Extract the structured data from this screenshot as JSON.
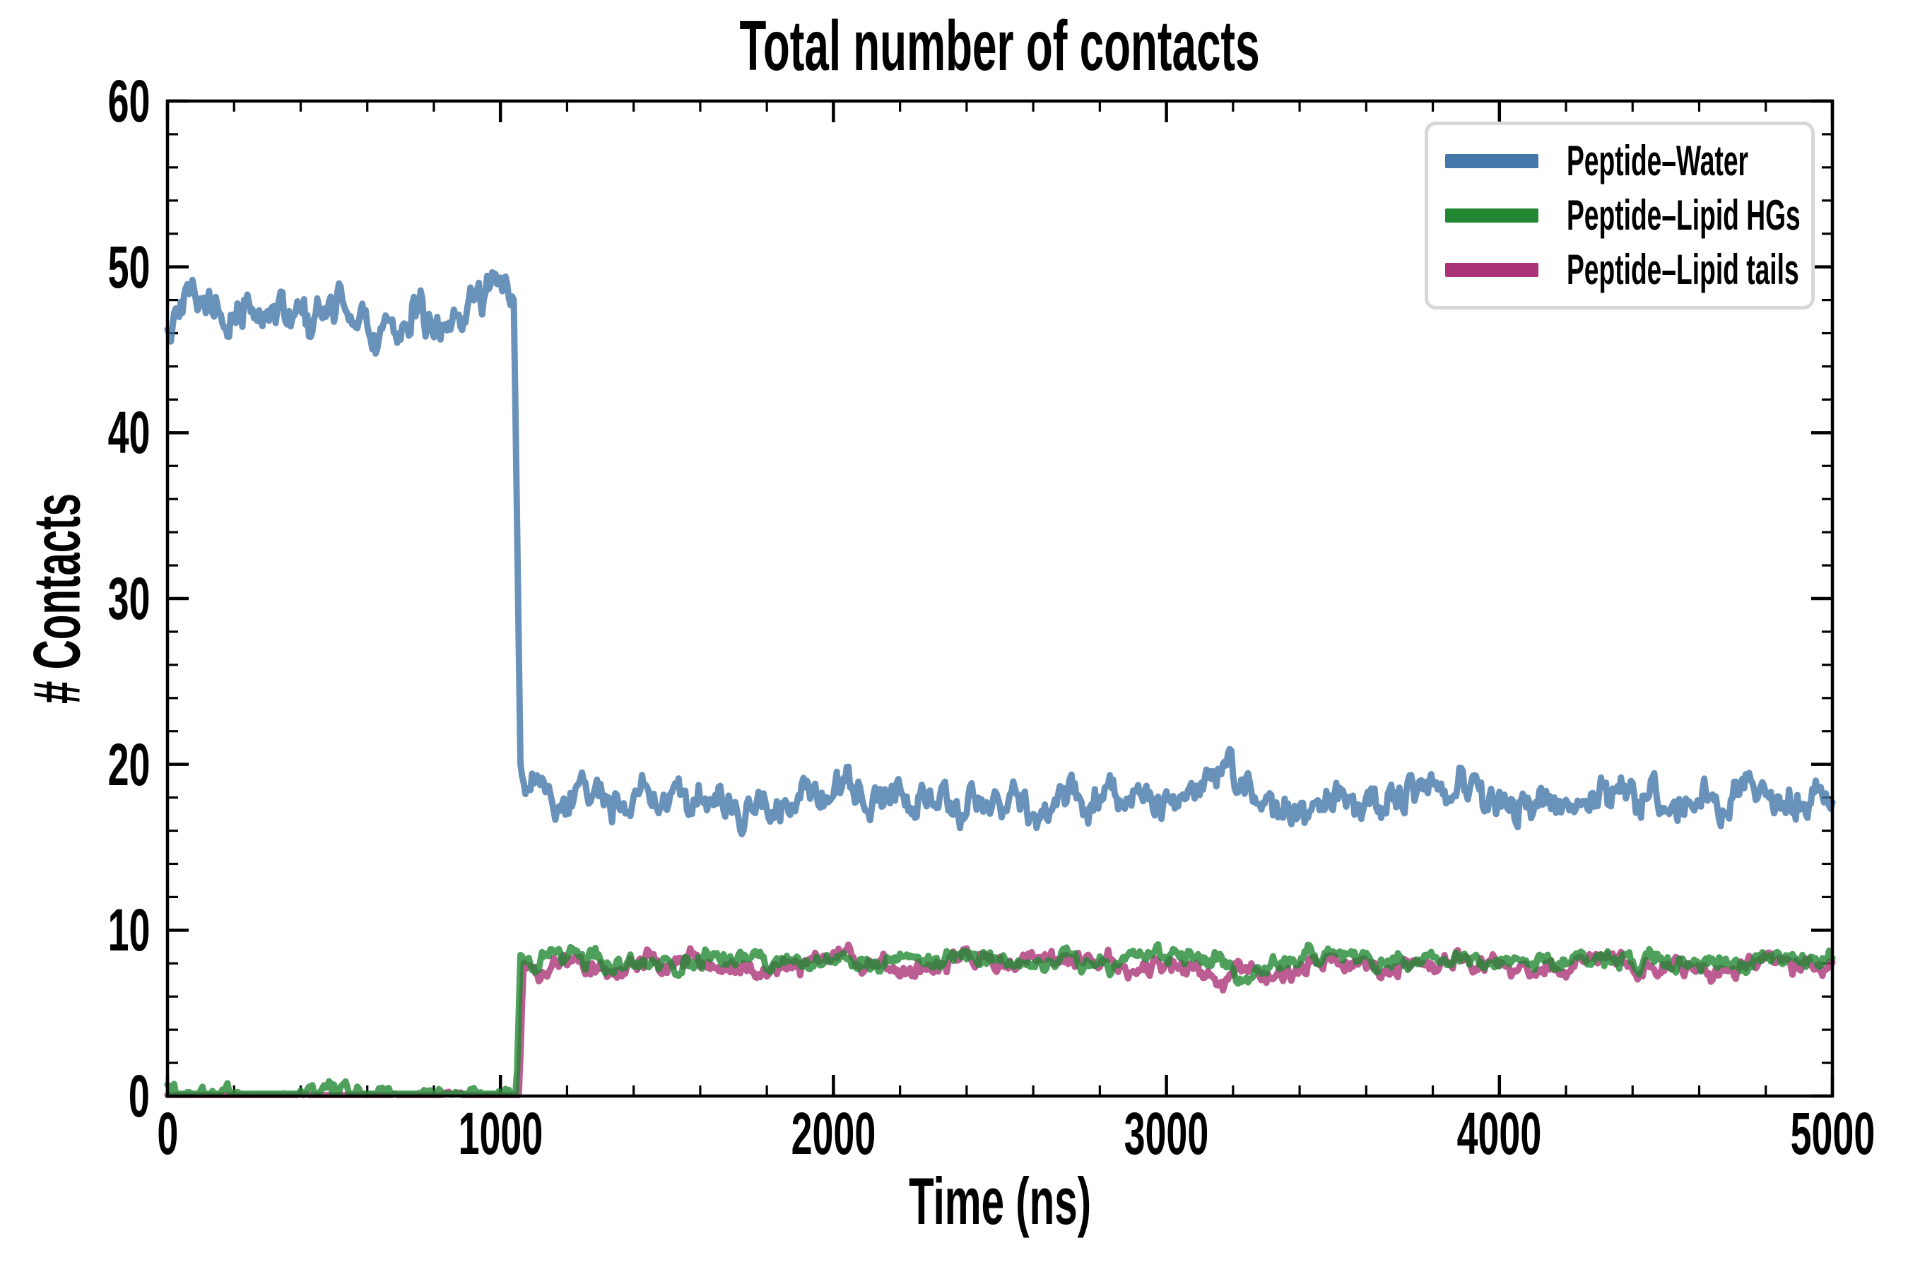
{
  "figure": {
    "background": "#ffffff",
    "spine_color": "#000000",
    "legend_border_color": "#d7d7d7",
    "text_color": "#000000"
  },
  "chart_data": {
    "type": "line",
    "title": "Total number of contacts",
    "xlabel": "Time (ns)",
    "ylabel": "# Contacts",
    "xlim": [
      0,
      5000
    ],
    "ylim": [
      0,
      60
    ],
    "x_major_ticks": [
      0,
      1000,
      2000,
      3000,
      4000,
      5000
    ],
    "y_major_ticks": [
      0,
      10,
      20,
      30,
      40,
      50,
      60
    ],
    "x_minor_step": 200,
    "y_minor_step": 2,
    "grid": false,
    "tick_direction": "in",
    "ticks_all_sides": true,
    "legend_position": "upper right",
    "line_alpha": 0.8,
    "sample_step_ns": 5,
    "series": [
      {
        "name": "Peptide–Water",
        "color": "#4477AA",
        "linewidth": 9,
        "seed": 113,
        "summary": "~47.5 contacts (range 45–50.5) from 0 to ~1040 ns, sharp drop at ~1040–1060 ns, then ~17.8 contacts (range 15.5–21) until 5000 ns",
        "segments": [
          {
            "type": "plateau",
            "t0": 0,
            "t1": 1040,
            "mean": 47.5,
            "amp": 1.35,
            "min": 44.6,
            "max": 50.6,
            "start": 45.4
          },
          {
            "type": "ramp",
            "t0": 1040,
            "t1": 1060,
            "from": 48.3,
            "to": 20.0
          },
          {
            "type": "plateau",
            "t0": 1060,
            "t1": 5000,
            "mean": 17.8,
            "amp": 1.15,
            "min": 15.3,
            "max": 21.2,
            "start": 19.6
          }
        ],
        "events": [
          {
            "tc": 660,
            "dv": -1.3,
            "w": 35
          },
          {
            "tc": 980,
            "dv": 1.4,
            "w": 30
          },
          {
            "tc": 1470,
            "dv": 1.2,
            "w": 35
          },
          {
            "tc": 3200,
            "dv": 1.5,
            "w": 45
          },
          {
            "tc": 4230,
            "dv": 1.2,
            "w": 40
          }
        ]
      },
      {
        "name": "Peptide–Lipid HGs",
        "color": "#228833",
        "linewidth": 9,
        "seed": 20,
        "summary": "~0 contacts with small bumps (≤1) from 0 to ~1050 ns, jump at ~1050 ns, then ~8.2 contacts (range 7–9.5) until 5000 ns",
        "segments": [
          {
            "type": "baseline",
            "t0": 0,
            "t1": 1048,
            "base": 0.14,
            "amp": 0.4,
            "thr": 0.14,
            "k": 1.7,
            "max": 0.95,
            "init": 0.5
          },
          {
            "type": "ramp",
            "t0": 1048,
            "t1": 1060,
            "from": 0.2,
            "to": 8.5
          },
          {
            "type": "plateau",
            "t0": 1060,
            "t1": 5000,
            "mean": 8.25,
            "amp": 0.55,
            "min": 6.8,
            "max": 9.7,
            "start": 8.5
          }
        ],
        "events": [
          {
            "tc": 3250,
            "dv": -0.9,
            "w": 35
          }
        ]
      },
      {
        "name": "Peptide–Lipid tails",
        "color": "#AA3377",
        "linewidth": 9,
        "seed": 77,
        "summary": "~0 contacts from 0 to ~1060 ns, jump at ~1060 ns, then ~7.8 contacts (range 6.3–9.5) until 5000 ns",
        "segments": [
          {
            "type": "baseline",
            "t0": 0,
            "t1": 1056,
            "base": 0.06,
            "amp": 0.16,
            "thr": 0.12,
            "k": 1.0,
            "max": 0.4,
            "init": 0
          },
          {
            "type": "ramp",
            "t0": 1056,
            "t1": 1068,
            "from": 0.06,
            "to": 7.4
          },
          {
            "type": "plateau",
            "t0": 1068,
            "t1": 5000,
            "mean": 7.8,
            "amp": 0.62,
            "min": 6.2,
            "max": 9.6,
            "start": 7.4
          }
        ],
        "events": [
          {
            "tc": 2600,
            "dv": 0.8,
            "w": 35
          },
          {
            "tc": 3150,
            "dv": -0.8,
            "w": 40
          },
          {
            "tc": 4830,
            "dv": 1.1,
            "w": 35
          }
        ]
      }
    ],
    "draw_order": [
      0,
      2,
      1
    ]
  },
  "legend": {
    "items": [
      {
        "label": "Peptide–Water",
        "color": "#4477AA"
      },
      {
        "label": "Peptide–Lipid HGs",
        "color": "#228833"
      },
      {
        "label": "Peptide–Lipid tails",
        "color": "#AA3377"
      }
    ]
  }
}
